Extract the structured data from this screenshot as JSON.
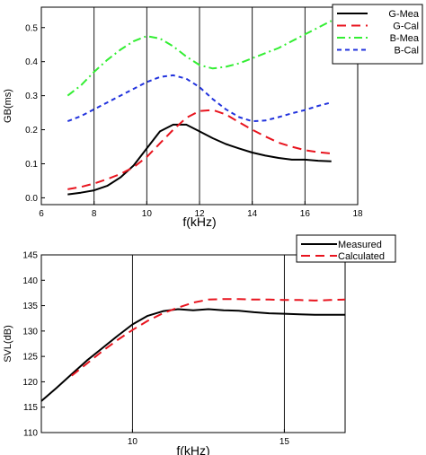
{
  "chart_data": [
    {
      "type": "line",
      "xlabel": "f(kHz)",
      "ylabel": "GB(ms)",
      "xlim": [
        6,
        18
      ],
      "ylim": [
        -0.02,
        0.56
      ],
      "xticks": [
        "6",
        "8",
        "10",
        "12",
        "14",
        "16",
        "18"
      ],
      "yticks": [
        "0.0",
        "0.1",
        "0.2",
        "0.3",
        "0.4",
        "0.5"
      ],
      "grid": "vertical",
      "legend_position": "top-right",
      "series": [
        {
          "name": "G-Mea",
          "color": "#000000",
          "dash": "solid",
          "x": [
            7,
            7.5,
            8,
            8.5,
            9,
            9.5,
            10,
            10.5,
            11,
            11.5,
            12,
            12.5,
            13,
            13.5,
            14,
            14.5,
            15,
            15.5,
            16,
            16.5,
            17
          ],
          "y": [
            0.01,
            0.015,
            0.022,
            0.035,
            0.06,
            0.095,
            0.145,
            0.195,
            0.215,
            0.215,
            0.195,
            0.175,
            0.158,
            0.145,
            0.133,
            0.124,
            0.117,
            0.112,
            0.112,
            0.109,
            0.107
          ]
        },
        {
          "name": "G-Cal",
          "color": "#e8141e",
          "dash": "long",
          "x": [
            7,
            7.5,
            8,
            8.5,
            9,
            9.5,
            10,
            10.5,
            11,
            11.5,
            12,
            12.5,
            13,
            13.5,
            14,
            14.5,
            15,
            15.5,
            16,
            16.5,
            17
          ],
          "y": [
            0.025,
            0.032,
            0.042,
            0.055,
            0.07,
            0.09,
            0.12,
            0.16,
            0.2,
            0.235,
            0.255,
            0.258,
            0.245,
            0.222,
            0.2,
            0.18,
            0.162,
            0.15,
            0.14,
            0.134,
            0.13
          ]
        },
        {
          "name": "B-Mea",
          "color": "#33ee33",
          "dash": "dashdot",
          "x": [
            7,
            7.5,
            8,
            8.5,
            9,
            9.5,
            10,
            10.5,
            11,
            11.5,
            12,
            12.5,
            13,
            13.5,
            14,
            14.5,
            15,
            15.5,
            16,
            16.5,
            17
          ],
          "y": [
            0.3,
            0.33,
            0.37,
            0.405,
            0.435,
            0.46,
            0.475,
            0.468,
            0.445,
            0.415,
            0.39,
            0.38,
            0.385,
            0.395,
            0.41,
            0.425,
            0.44,
            0.46,
            0.48,
            0.5,
            0.52
          ]
        },
        {
          "name": "B-Cal",
          "color": "#2233dd",
          "dash": "short",
          "x": [
            7,
            7.5,
            8,
            8.5,
            9,
            9.5,
            10,
            10.5,
            11,
            11.5,
            12,
            12.5,
            13,
            13.5,
            14,
            14.5,
            15,
            15.5,
            16,
            16.5,
            17
          ],
          "y": [
            0.225,
            0.24,
            0.26,
            0.28,
            0.3,
            0.32,
            0.34,
            0.355,
            0.36,
            0.35,
            0.325,
            0.29,
            0.26,
            0.237,
            0.225,
            0.227,
            0.237,
            0.248,
            0.258,
            0.27,
            0.28
          ]
        }
      ]
    },
    {
      "type": "line",
      "xlabel": "f(kHz)",
      "ylabel": "SVL(dB)",
      "xlim": [
        7,
        17
      ],
      "ylim": [
        110,
        145
      ],
      "xticks": [
        "10",
        "15"
      ],
      "yticks": [
        "110",
        "115",
        "120",
        "125",
        "130",
        "135",
        "140",
        "145"
      ],
      "grid": "vertical",
      "legend_position": "top-right",
      "series": [
        {
          "name": "Measured",
          "color": "#000000",
          "dash": "solid",
          "x": [
            7,
            7.5,
            8,
            8.5,
            9,
            9.5,
            10,
            10.5,
            11,
            11.5,
            12,
            12.5,
            13,
            13.5,
            14,
            14.5,
            15,
            15.5,
            16,
            16.5,
            17
          ],
          "y": [
            116.2,
            118.8,
            121.5,
            124.2,
            126.6,
            129.0,
            131.3,
            133.0,
            133.9,
            134.3,
            134.1,
            134.3,
            134.1,
            134.0,
            133.7,
            133.5,
            133.4,
            133.3,
            133.2,
            133.2,
            133.2
          ]
        },
        {
          "name": "Calculated",
          "color": "#e8141e",
          "dash": "long",
          "x": [
            8,
            8.5,
            9,
            9.5,
            10,
            10.5,
            11,
            11.5,
            12,
            12.5,
            13,
            13.5,
            14,
            14.5,
            15,
            15.5,
            16,
            16.5,
            17
          ],
          "y": [
            121.2,
            123.6,
            126.0,
            128.2,
            130.2,
            132.0,
            133.5,
            134.6,
            135.6,
            136.2,
            136.3,
            136.3,
            136.2,
            136.2,
            136.1,
            136.1,
            136.0,
            136.1,
            136.2
          ]
        }
      ]
    }
  ]
}
